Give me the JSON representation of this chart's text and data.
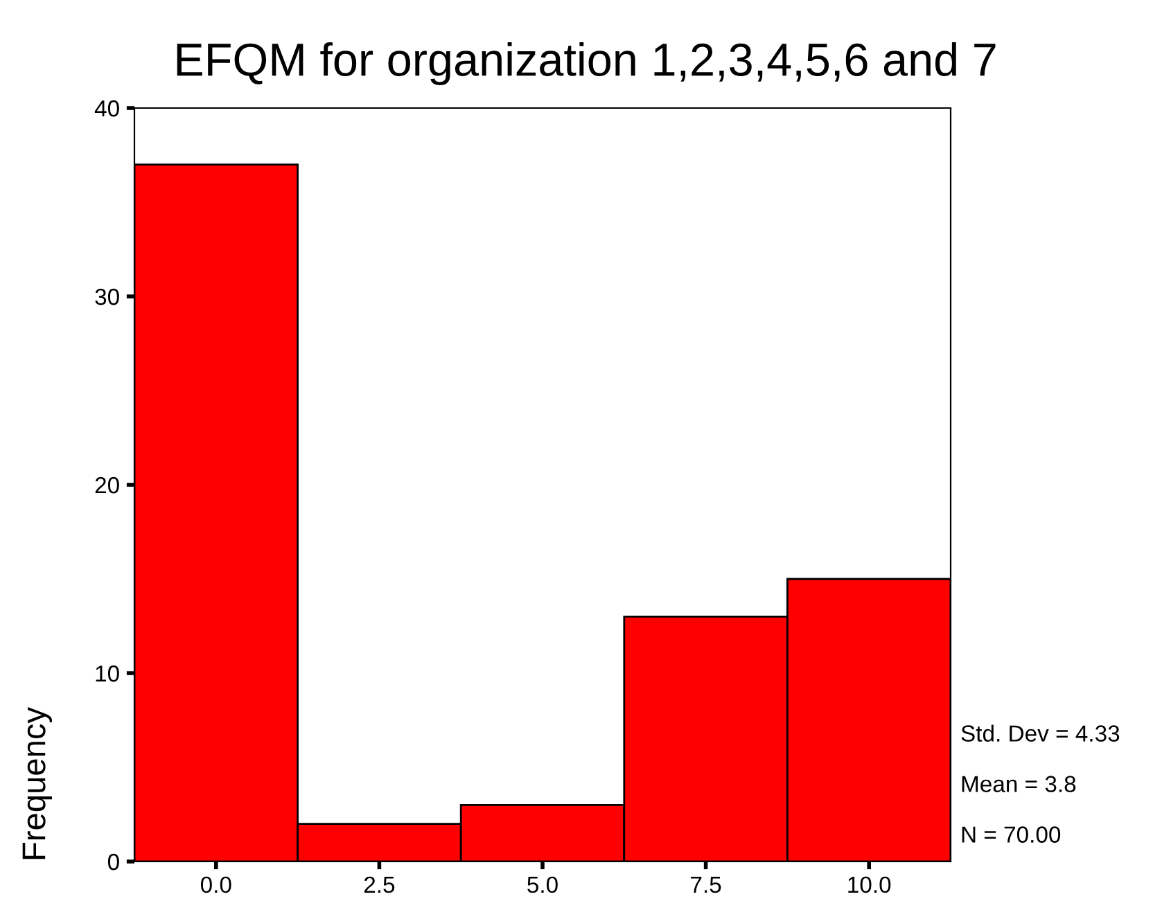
{
  "chart_data": {
    "type": "histogram",
    "title": "EFQM for organization 1,2,3,4,5,6 and 7",
    "ylabel": "Frequency",
    "bins": [
      -1.25,
      1.25,
      3.75,
      6.25,
      8.75,
      11.25
    ],
    "values": [
      37,
      2,
      3,
      13,
      15
    ],
    "color": "#ff0000",
    "xlim": [
      -1.25,
      11.25
    ],
    "ylim": [
      0,
      40
    ],
    "xticks": [
      {
        "value": 0,
        "label": "0.0"
      },
      {
        "value": 2.5,
        "label": "2.5"
      },
      {
        "value": 5,
        "label": "5.0"
      },
      {
        "value": 7.5,
        "label": "7.5"
      },
      {
        "value": 10,
        "label": "10.0"
      }
    ],
    "yticks": [
      0,
      10,
      20,
      30,
      40
    ],
    "grid": false,
    "annotations": [
      "Std. Dev = 4.33",
      "Mean = 3.8",
      "N = 70.00"
    ]
  }
}
